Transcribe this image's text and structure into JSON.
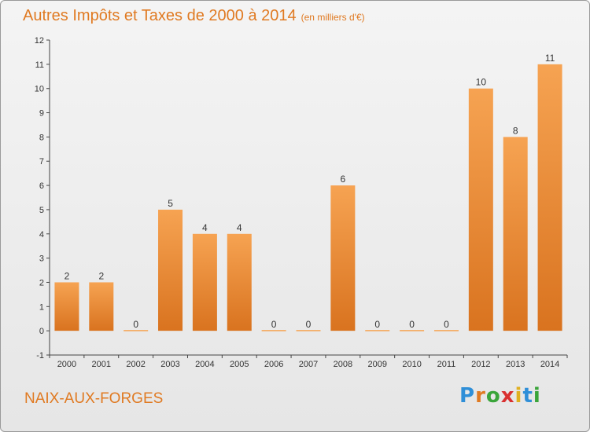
{
  "title": "Autres Impôts et Taxes de 2000 à 2014",
  "subtitle": "(en milliers d'€)",
  "commune": "NAIX-AUX-FORGES",
  "brand": [
    "P",
    "r",
    "o",
    "x",
    "i",
    "t",
    "i"
  ],
  "brand_colors": [
    "#2f8fd8",
    "#e07a22",
    "#3aa53a",
    "#d93030",
    "#e0b020",
    "#2f8fd8",
    "#3aa53a"
  ],
  "colors": {
    "bar_light": "#f6a352",
    "bar_dark": "#d9731f",
    "accent": "#e07a22"
  },
  "chart_data": {
    "type": "bar",
    "categories": [
      "2000",
      "2001",
      "2002",
      "2003",
      "2004",
      "2005",
      "2006",
      "2007",
      "2008",
      "2009",
      "2010",
      "2011",
      "2012",
      "2013",
      "2014"
    ],
    "values": [
      2,
      2,
      0,
      5,
      4,
      4,
      0,
      0,
      6,
      0,
      0,
      0,
      10,
      8,
      11
    ],
    "ylim": [
      -1,
      12
    ],
    "yticks": [
      -1,
      0,
      1,
      2,
      3,
      4,
      5,
      6,
      7,
      8,
      9,
      10,
      11,
      12
    ],
    "grid": false
  }
}
